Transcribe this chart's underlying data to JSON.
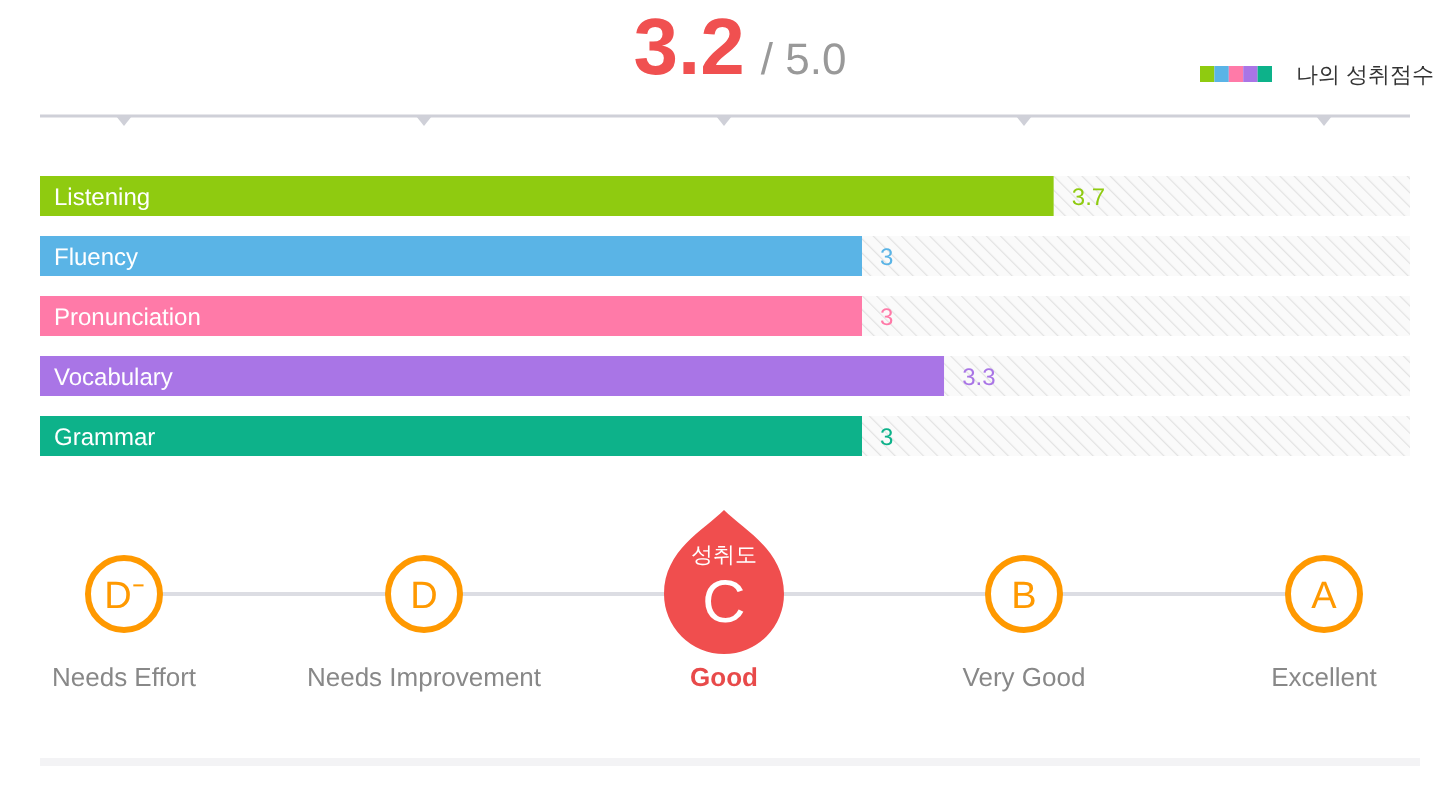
{
  "chart_data": [
    {
      "type": "bar",
      "orientation": "horizontal",
      "stacked": true,
      "title": "3.2",
      "subtitle": "/ 5.0",
      "categories": [
        "Listening",
        "Fluency",
        "Pronunciation",
        "Vocabulary",
        "Grammar"
      ],
      "series": [
        {
          "name": "나의 성취점수",
          "colors": [
            "#8fcb10",
            "#5ab4e6",
            "#ff7aa8",
            "#a975e6",
            "#0db28a"
          ],
          "values": [
            3.7,
            3,
            3,
            3.3,
            3
          ],
          "value_labels": [
            "3.7",
            "3",
            "3",
            "3.3",
            "3"
          ]
        },
        {
          "color": "#e2e2e2",
          "values": [
            1.3,
            2,
            2,
            1.7,
            2
          ]
        }
      ],
      "xlim": [
        0,
        5
      ],
      "legend": "top right"
    },
    {
      "type": "other",
      "categories": [
        "Needs Effort",
        "Needs Improvement",
        "Good",
        "Very Good",
        "Excellent"
      ],
      "value_labels": [
        "D⁻",
        "D",
        "C",
        "B",
        "A"
      ],
      "annotations": [
        {
          "text": "성취도",
          "x": "Good"
        }
      ]
    }
  ]
}
